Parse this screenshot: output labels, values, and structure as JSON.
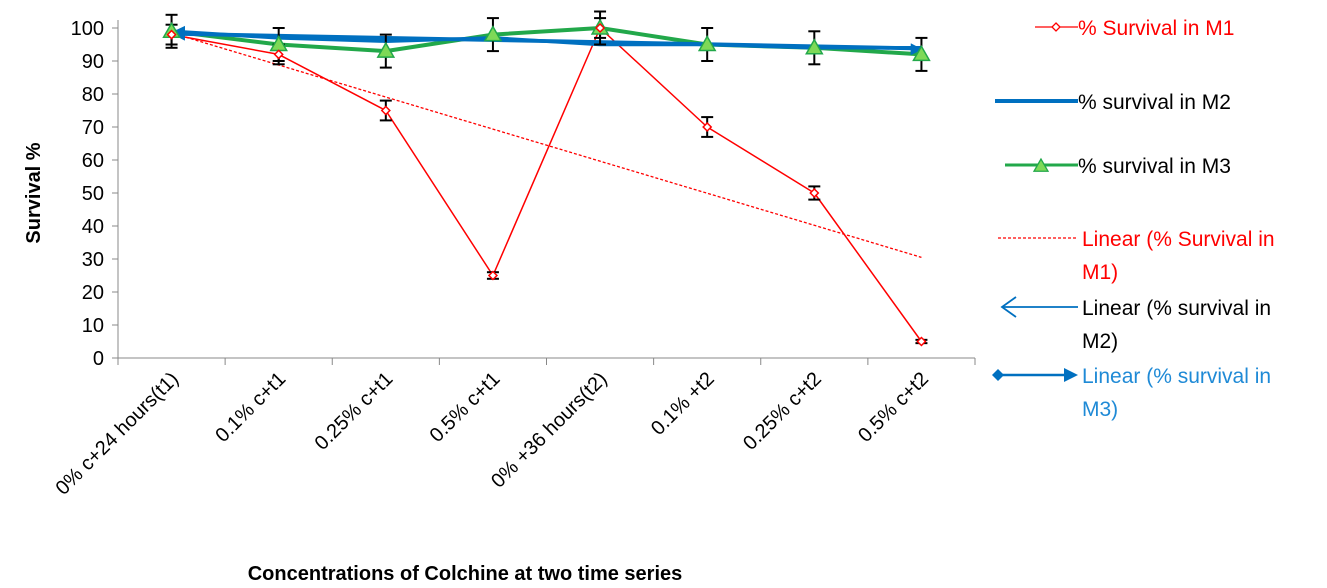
{
  "chart_data": {
    "type": "line",
    "title": "",
    "xlabel": "Concentrations of Colchine at two time series",
    "ylabel": "Survival %",
    "ylim": [
      0,
      100
    ],
    "yticks": [
      0,
      10,
      20,
      30,
      40,
      50,
      60,
      70,
      80,
      90,
      100
    ],
    "categories": [
      "0% c+24 hours(t1)",
      "0.1% c+t1",
      "0.25% c+t1",
      "0.5% c+t1",
      "0% +36 hours(t2)",
      "0.1% +t2",
      "0.25% c+t2",
      "0.5% c+t2"
    ],
    "series": [
      {
        "name": "% Survival in M1",
        "color": "#ff0000",
        "marker": "diamond-open",
        "values": [
          98,
          92,
          75,
          25,
          100,
          70,
          50,
          5
        ],
        "errors": [
          3,
          3,
          3,
          1,
          3,
          3,
          2,
          0.5
        ]
      },
      {
        "name": "% survival in M2",
        "color": "#0070c0",
        "marker": "none",
        "values": [
          99,
          97,
          96,
          97,
          95,
          95,
          94,
          94
        ],
        "errors": [
          5,
          3,
          2,
          3,
          3,
          3,
          3,
          3
        ]
      },
      {
        "name": "% survival in M3",
        "color": "#22a84a",
        "marker": "triangle",
        "values": [
          99,
          95,
          93,
          98,
          100,
          95,
          94,
          92
        ],
        "errors": [
          5,
          5,
          5,
          5,
          5,
          5,
          5,
          5
        ]
      }
    ],
    "trendlines": [
      {
        "name": "Linear (% Survival in M1)",
        "color": "#ff0000",
        "style": "dotted",
        "start": 98.5,
        "end": 30.5
      },
      {
        "name": "Linear (% survival in M2)",
        "color": "#0070c0",
        "style": "arrow-start",
        "start": 98.5,
        "end": 94
      },
      {
        "name": "Linear (% survival in M3)",
        "color": "#0070c0",
        "style": "arrow-end",
        "start": 98,
        "end": 93.5
      }
    ],
    "legend_position": "right",
    "legend_text_colors": [
      "#ff0000",
      "#000000",
      "#000000",
      "#ff0000",
      "#000000",
      "#1f8ad6"
    ],
    "grid": false
  }
}
